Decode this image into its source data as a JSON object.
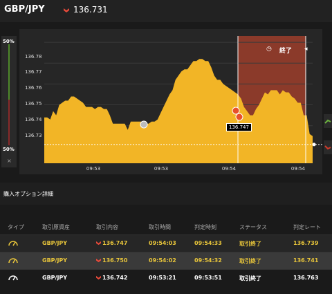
{
  "header": {
    "pair": "GBP/JPY",
    "rate": "136.731"
  },
  "gauge": {
    "top_pct": "50%",
    "bottom_pct": "50%",
    "close": "×"
  },
  "chart_overlay": {
    "end_label": "終了",
    "current_tag": "136.747"
  },
  "chart_data": {
    "type": "area",
    "y_ticks": [
      "136.78",
      "136.77",
      "136.76",
      "136.75",
      "136.74",
      "136.73"
    ],
    "x_ticks": [
      "09:53",
      "09:53",
      "09:54",
      "09:54"
    ],
    "ylim": [
      136.722,
      136.785
    ],
    "y": [
      136.744,
      136.744,
      136.743,
      136.747,
      136.745,
      136.75,
      136.751,
      136.752,
      136.752,
      136.754,
      136.754,
      136.753,
      136.752,
      136.751,
      136.749,
      136.749,
      136.749,
      136.748,
      136.749,
      136.749,
      136.748,
      136.748,
      136.745,
      136.741,
      136.741,
      136.741,
      136.741,
      136.741,
      136.738,
      136.742,
      136.742,
      136.742,
      136.742,
      136.742,
      136.741,
      136.741,
      136.742,
      136.742,
      136.743,
      136.746,
      136.749,
      136.752,
      136.755,
      136.757,
      136.762,
      136.764,
      136.766,
      136.767,
      136.767,
      136.769,
      136.771,
      136.771,
      136.772,
      136.772,
      136.771,
      136.771,
      136.768,
      136.764,
      136.762,
      136.762,
      136.76,
      136.759,
      136.758,
      136.757,
      136.756,
      136.755,
      136.753,
      136.749,
      136.747,
      136.745,
      136.745,
      136.748,
      136.75,
      136.753,
      136.756,
      136.755,
      136.757,
      136.757,
      136.757,
      136.755,
      136.757,
      136.756,
      136.756,
      136.754,
      136.753,
      136.751,
      136.751,
      136.745,
      136.745,
      136.736,
      136.735
    ],
    "grid": true
  },
  "section": {
    "title": "購入オプション詳細"
  },
  "table": {
    "headers": [
      "タイプ",
      "取引原資産",
      "取引内容",
      "取引時間",
      "判定時刻",
      "ステータス",
      "判定レート"
    ],
    "rows": [
      {
        "asset": "GBP/JPY",
        "content": "136.747",
        "trade_time": "09:54:03",
        "judge_time": "09:54:33",
        "status": "取引終了",
        "rate": "136.739",
        "color": "#e8c53a"
      },
      {
        "asset": "GBP/JPY",
        "content": "136.750",
        "trade_time": "09:54:02",
        "judge_time": "09:54:32",
        "status": "取引終了",
        "rate": "136.741",
        "color": "#e8c53a"
      },
      {
        "asset": "GBP/JPY",
        "content": "136.742",
        "trade_time": "09:53:21",
        "judge_time": "09:53:51",
        "status": "取引終了",
        "rate": "136.763",
        "color": "#ffffff"
      }
    ]
  }
}
